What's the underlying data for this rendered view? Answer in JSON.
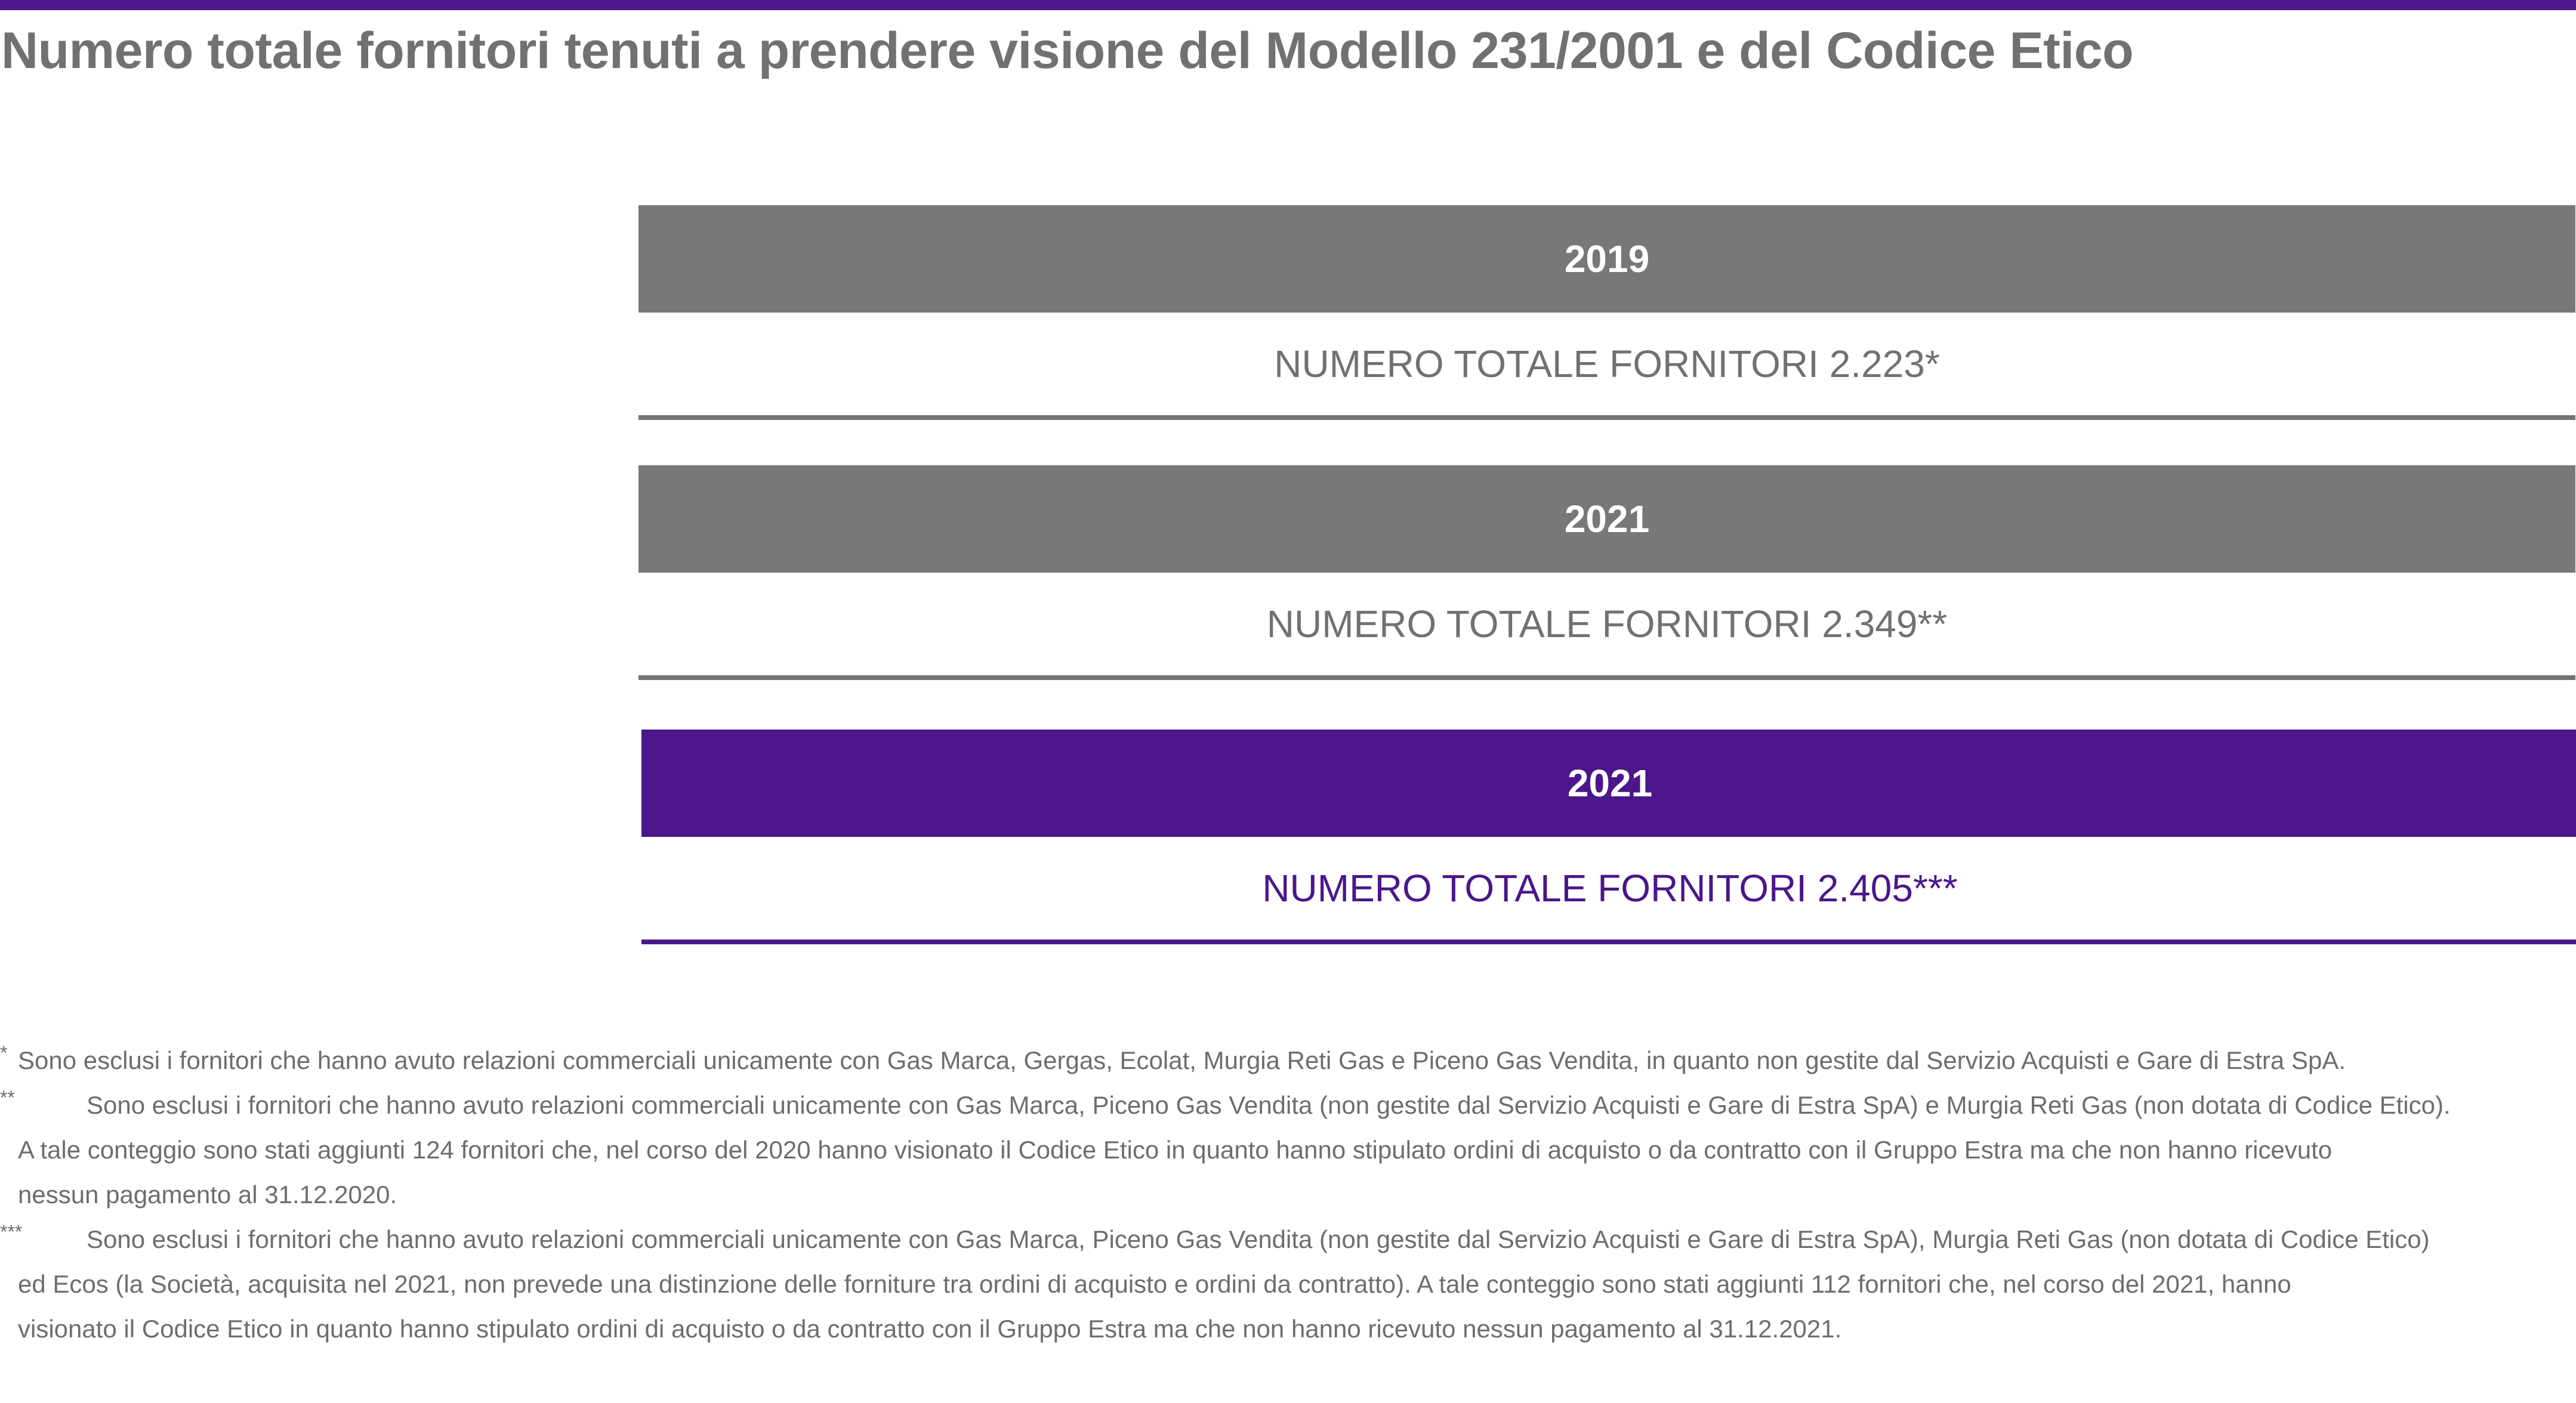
{
  "title": "Numero totale fornitori tenuti a prendere visione del Modello 231/2001 e del Codice Etico",
  "colors": {
    "accent_purple": "#4b168a",
    "header_grey": "#78787a",
    "text_grey": "#717171"
  },
  "blocks": [
    {
      "year": "2019",
      "value_text": "NUMERO TOTALE FORNITORI 2.223*",
      "style": "grey"
    },
    {
      "year": "2021",
      "value_text": "NUMERO TOTALE FORNITORI 2.349**",
      "style": "grey"
    },
    {
      "year": "2021",
      "value_text": "NUMERO TOTALE FORNITORI 2.405***",
      "style": "purple"
    }
  ],
  "footnotes": {
    "note1": {
      "marker": "*",
      "line1": "Sono esclusi i fornitori che hanno avuto relazioni commerciali unicamente con Gas Marca, Gergas, Ecolat, Murgia Reti Gas e Piceno Gas Vendita, in quanto non gestite dal Servizio Acquisti e Gare di Estra SpA."
    },
    "note2": {
      "marker": "**",
      "line1": "Sono esclusi i fornitori che hanno avuto relazioni commerciali unicamente con Gas Marca, Piceno Gas Vendita (non gestite dal Servizio Acquisti e Gare di Estra SpA) e Murgia Reti Gas (non dotata di Codice Etico).",
      "line2": "A tale conteggio sono stati aggiunti 124 fornitori che, nel corso del 2020 hanno visionato il Codice Etico in quanto hanno stipulato ordini di acquisto o da contratto con il Gruppo Estra ma che non hanno ricevuto",
      "line3": "nessun pagamento al 31.12.2020."
    },
    "note3": {
      "marker": "***",
      "line1": "Sono esclusi i fornitori che hanno avuto relazioni commerciali unicamente con Gas Marca, Piceno Gas Vendita (non gestite dal Servizio Acquisti e Gare di Estra SpA), Murgia Reti Gas (non dotata di Codice Etico)",
      "line2": "ed Ecos (la Società, acquisita nel 2021, non prevede una distinzione delle forniture tra ordini di acquisto e ordini da contratto). A tale conteggio sono stati aggiunti 112 fornitori che, nel corso del 2021, hanno",
      "line3": "visionato il Codice Etico in quanto hanno stipulato ordini di acquisto o da contratto con il Gruppo Estra ma che non hanno ricevuto nessun pagamento al 31.12.2021."
    }
  }
}
